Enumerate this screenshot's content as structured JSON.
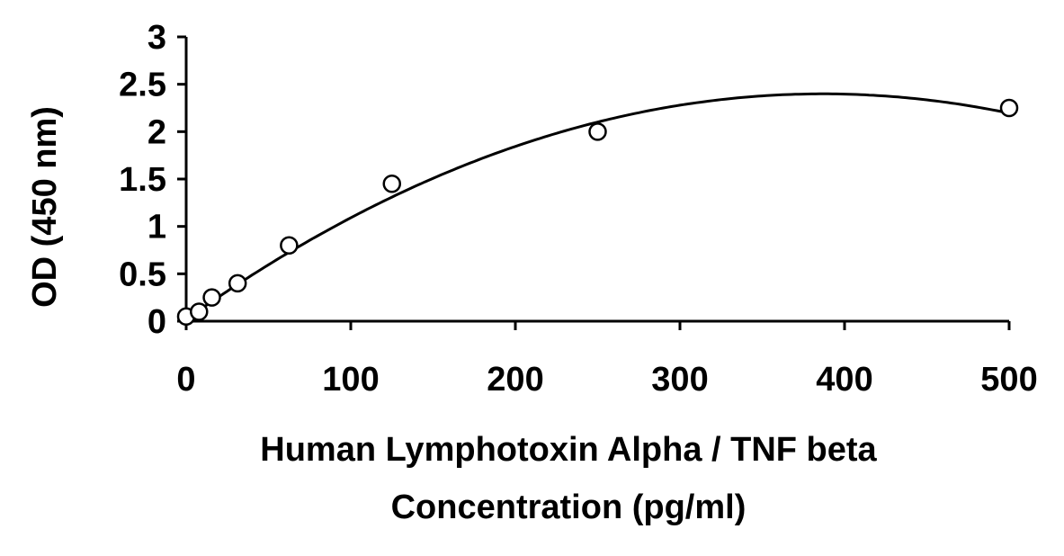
{
  "chart_data": {
    "type": "scatter",
    "title": "",
    "xlabel": [
      "Human Lymphotoxin Alpha / TNF beta",
      "Concentration (pg/ml)"
    ],
    "ylabel": "OD (450 nm)",
    "xlim": [
      0,
      500
    ],
    "ylim": [
      0,
      3
    ],
    "x_ticks": [
      0,
      100,
      200,
      300,
      400,
      500
    ],
    "y_ticks": [
      0,
      0.5,
      1,
      1.5,
      2,
      2.5,
      3
    ],
    "x_tick_labels": [
      "0",
      "100",
      "200",
      "300",
      "400",
      "500"
    ],
    "y_tick_labels": [
      "0",
      "0.5",
      "1",
      "1.5",
      "2",
      "2.5",
      "3"
    ],
    "grid": false,
    "legend": "none",
    "series": [
      {
        "marker": "open-circle",
        "x": [
          0,
          7.8,
          15.6,
          31.25,
          62.5,
          125,
          250,
          500
        ],
        "y": [
          0.05,
          0.1,
          0.25,
          0.4,
          0.8,
          1.45,
          2.0,
          2.25
        ]
      }
    ],
    "trendline": {
      "type": "polynomial-2",
      "coefficients": [
        0.02,
        0.0123,
        -1.59e-05
      ]
    },
    "colors": {
      "marks": "#000000",
      "background": "#ffffff"
    }
  }
}
